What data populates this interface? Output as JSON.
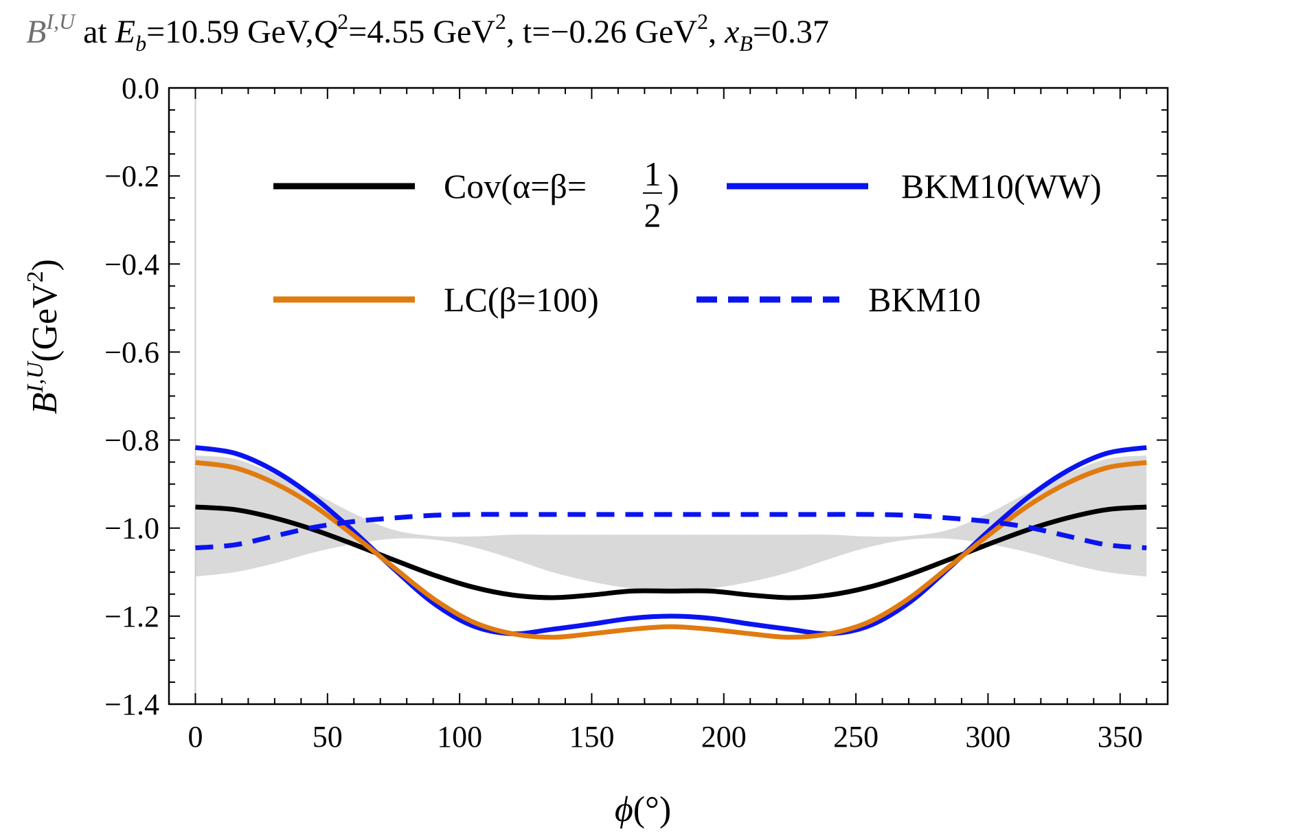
{
  "chart_data": {
    "type": "line",
    "title": {
      "symbol": "B",
      "symbol_sup": "I,U",
      "at": " at ",
      "eb_symbol": "E",
      "eb_sub": "b",
      "eb_value": "=10.59 GeV,",
      "q_symbol": "Q",
      "q_sup": "2",
      "q_value": "=4.55 GeV",
      "q_unit_sup": "2",
      "t_part": ", t=−0.26 GeV",
      "t_unit_sup": "2",
      "sep": ", ",
      "xb_symbol": "x",
      "xb_sub": "B",
      "xb_value": "=0.37"
    },
    "xlabel": {
      "symbol": "ϕ",
      "unit": "(°)"
    },
    "ylabel": {
      "symbol": "B",
      "sup": "I,U",
      "unit": "(GeV",
      "unit_sup": "2",
      "close": ")"
    },
    "xlim": [
      -10,
      368
    ],
    "ylim": [
      -1.4,
      0.0
    ],
    "x_ticks": [
      0,
      50,
      100,
      150,
      200,
      250,
      300,
      350
    ],
    "x_tick_labels": [
      "0",
      "50",
      "100",
      "150",
      "200",
      "250",
      "300",
      "350"
    ],
    "y_ticks": [
      0.0,
      -0.2,
      -0.4,
      -0.6,
      -0.8,
      -1.0,
      -1.2,
      -1.4
    ],
    "y_tick_labels": [
      "0.0",
      "−0.2",
      "−0.4",
      "−0.6",
      "−0.8",
      "−1.0",
      "−1.2",
      "−1.4"
    ],
    "x": [
      0,
      15,
      30,
      45,
      60,
      75,
      90,
      105,
      120,
      135,
      150,
      165,
      180,
      195,
      210,
      225,
      240,
      255,
      270,
      285,
      300,
      315,
      330,
      345,
      360
    ],
    "band": {
      "name": "uncertainty band",
      "color": "#d9d9d9",
      "upper": [
        -0.835,
        -0.843,
        -0.877,
        -0.92,
        -0.967,
        -1.004,
        -1.018,
        -1.019,
        -1.015,
        -1.015,
        -1.015,
        -1.015,
        -1.015,
        -1.015,
        -1.015,
        -1.015,
        -1.015,
        -1.019,
        -1.018,
        -1.004,
        -0.967,
        -0.92,
        -0.877,
        -0.843,
        -0.835
      ],
      "lower": [
        -1.11,
        -1.1,
        -1.08,
        -1.055,
        -1.036,
        -1.024,
        -1.026,
        -1.043,
        -1.07,
        -1.1,
        -1.122,
        -1.137,
        -1.141,
        -1.137,
        -1.122,
        -1.1,
        -1.07,
        -1.043,
        -1.026,
        -1.024,
        -1.036,
        -1.055,
        -1.08,
        -1.1,
        -1.11
      ]
    },
    "series": [
      {
        "name": "Cov(α=β=1/2)",
        "legend_label": "Cov(α=β=",
        "legend_frac_num": "1",
        "legend_frac_den": "2",
        "legend_close": ")",
        "color": "#000000",
        "style": "solid",
        "values": [
          -0.952,
          -0.958,
          -0.977,
          -1.004,
          -1.037,
          -1.072,
          -1.106,
          -1.134,
          -1.152,
          -1.158,
          -1.152,
          -1.143,
          -1.143,
          -1.143,
          -1.152,
          -1.158,
          -1.152,
          -1.134,
          -1.106,
          -1.072,
          -1.037,
          -1.004,
          -0.977,
          -0.958,
          -0.952
        ]
      },
      {
        "name": "BKM10(WW)",
        "legend_label": "BKM10(WW)",
        "color": "#0a14f0",
        "style": "solid",
        "values": [
          -0.817,
          -0.83,
          -0.87,
          -0.931,
          -1.008,
          -1.092,
          -1.17,
          -1.222,
          -1.24,
          -1.23,
          -1.218,
          -1.205,
          -1.2,
          -1.205,
          -1.218,
          -1.23,
          -1.24,
          -1.222,
          -1.17,
          -1.092,
          -1.008,
          -0.931,
          -0.87,
          -0.83,
          -0.817
        ]
      },
      {
        "name": "LC(β=100)",
        "legend_label": "LC(β=100)",
        "color": "#e07b10",
        "style": "solid",
        "values": [
          -0.851,
          -0.863,
          -0.898,
          -0.95,
          -1.017,
          -1.089,
          -1.16,
          -1.213,
          -1.24,
          -1.248,
          -1.24,
          -1.23,
          -1.224,
          -1.23,
          -1.24,
          -1.248,
          -1.24,
          -1.213,
          -1.16,
          -1.089,
          -1.017,
          -0.95,
          -0.898,
          -0.863,
          -0.851
        ]
      },
      {
        "name": "BKM10",
        "legend_label": "BKM10",
        "color": "#0a14f0",
        "style": "dashed",
        "values": [
          -1.045,
          -1.038,
          -1.018,
          -0.998,
          -0.985,
          -0.977,
          -0.971,
          -0.969,
          -0.969,
          -0.969,
          -0.969,
          -0.969,
          -0.969,
          -0.969,
          -0.969,
          -0.969,
          -0.969,
          -0.969,
          -0.971,
          -0.977,
          -0.985,
          -0.998,
          -1.018,
          -1.038,
          -1.045
        ]
      }
    ],
    "legend_position": "upper-center"
  }
}
